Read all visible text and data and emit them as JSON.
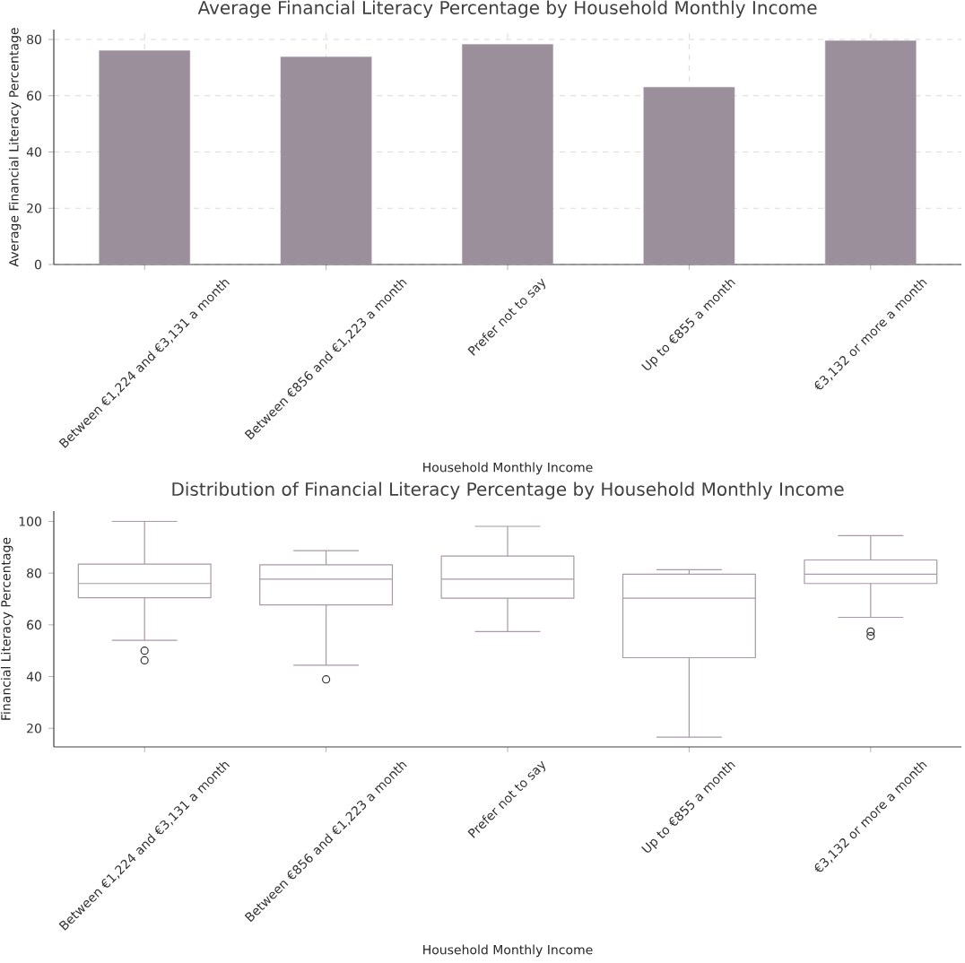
{
  "chart_data": [
    {
      "type": "bar",
      "title": "Average Financial Literacy Percentage by Household Monthly Income",
      "xlabel": "Household Monthly Income",
      "ylabel": "Average Financial Literacy Percentage",
      "categories": [
        "Between €1,224 and €3,131 a month",
        "Between €856 and €1,223 a month",
        "Prefer not to say",
        "Up to €855 a month",
        "€3,132 or more a month"
      ],
      "values": [
        76.0,
        73.8,
        78.2,
        63.0,
        79.5
      ],
      "color": "#9c8f9c",
      "ylim": [
        0,
        83.5
      ],
      "yticks": [
        0,
        20,
        40,
        60,
        80
      ],
      "grid": true
    },
    {
      "type": "box",
      "title": "Distribution of Financial Literacy Percentage by Household Monthly Income",
      "xlabel": "Household Monthly Income",
      "ylabel": "Financial Literacy Percentage",
      "categories": [
        "Between €1,224 and €3,131 a month",
        "Between €856 and €1,223 a month",
        "Prefer not to say",
        "Up to €855 a month",
        "€3,132 or more a month"
      ],
      "color": "#a898a8",
      "boxes": [
        {
          "low": 54.0,
          "q1": 70.5,
          "median": 76.0,
          "q3": 83.5,
          "high": 100,
          "outliers": [
            50.0,
            46.3
          ]
        },
        {
          "low": 44.4,
          "q1": 67.7,
          "median": 77.7,
          "q3": 83.2,
          "high": 88.7,
          "outliers": [
            38.9
          ]
        },
        {
          "low": 57.4,
          "q1": 70.3,
          "median": 77.7,
          "q3": 86.6,
          "high": 98.1
        },
        {
          "low": 16.6,
          "q1": 47.3,
          "median": 70.3,
          "q3": 79.6,
          "high": 81.3
        },
        {
          "low": 62.9,
          "q1": 76.0,
          "median": 79.6,
          "q3": 85.1,
          "high": 94.5,
          "outliers": [
            57.4,
            55.7
          ]
        }
      ],
      "ylim": [
        12.8,
        104
      ],
      "yticks": [
        20,
        40,
        60,
        80,
        100
      ]
    }
  ]
}
